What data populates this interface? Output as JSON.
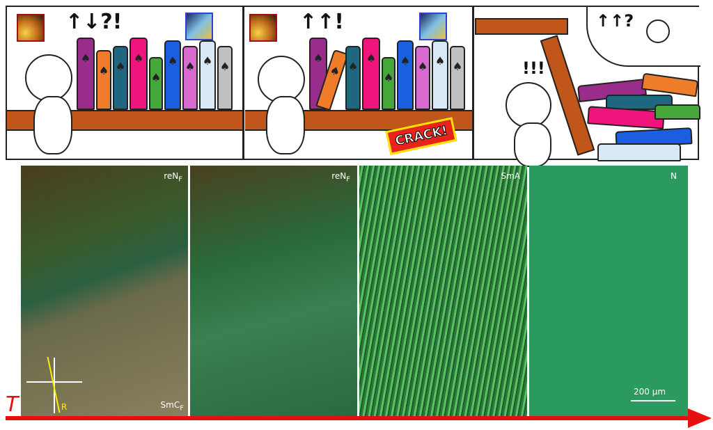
{
  "comic": {
    "panel1": {
      "exclaim": "↑↓?!"
    },
    "panel2": {
      "exclaim": "↑↑!",
      "crack": "CRACK!"
    },
    "panel3": {
      "exclaim": "!!!",
      "thought": "↑↑?"
    },
    "book_colors": [
      "#9a2d8c",
      "#ef7c2a",
      "#1f6680",
      "#f0157d",
      "#46a83a",
      "#1a5fe0",
      "#d96ad0",
      "#d8e8f5",
      "#c0c0c0"
    ],
    "book_icon": "spade-icon"
  },
  "micrographs": [
    {
      "phase_base": "reN",
      "phase_sub": "F",
      "secondary_base": "SmC",
      "secondary_sub": "F",
      "rubbing_label": "R"
    },
    {
      "phase_base": "reN",
      "phase_sub": "F"
    },
    {
      "phase_base": "SmA",
      "phase_sub": ""
    },
    {
      "phase_base": "N",
      "phase_sub": "",
      "scale_bar": "200 µm"
    }
  ],
  "temperature_axis": {
    "label": "T",
    "color": "#e8100f"
  }
}
